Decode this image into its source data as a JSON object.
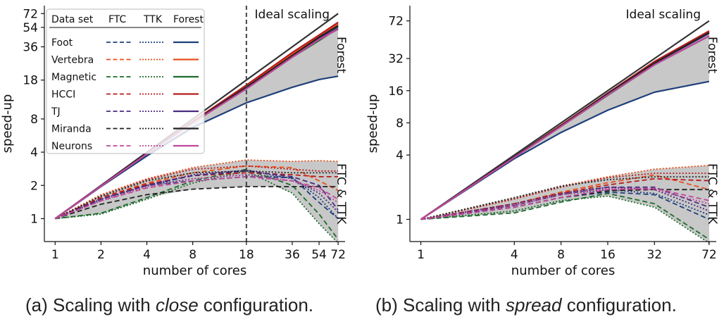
{
  "colors": {
    "Foot": "#1f3f7a",
    "Vertebra": "#e8501e",
    "Magnetic": "#1c6b2c",
    "HCCI": "#b71c1c",
    "TJ": "#4a2a80",
    "Miranda": "#222222",
    "Neurons": "#c0479c",
    "ideal": "#333333",
    "band": "#c8c8c8"
  },
  "legend": {
    "header": [
      "Data set",
      "FTC",
      "TTK",
      "Forest"
    ],
    "placement": "top-left"
  },
  "captions": {
    "a": {
      "prefix": "(a) Scaling with ",
      "em": "close",
      "suffix": " configuration."
    },
    "b": {
      "prefix": "(b) Scaling with ",
      "em": "spread",
      "suffix": " configuration."
    }
  },
  "chart_data": [
    {
      "type": "line",
      "id": "close",
      "xlabel": "number of cores",
      "ylabel": "speed-up",
      "xscale": "log",
      "yscale": "log",
      "x": [
        1,
        2,
        4,
        8,
        18,
        36,
        54,
        72
      ],
      "xticks": [
        1,
        2,
        4,
        8,
        18,
        36,
        54,
        72
      ],
      "yticks": [
        1,
        2,
        4,
        8,
        18,
        36,
        54,
        72
      ],
      "xlim": [
        0.85,
        80
      ],
      "ylim": [
        0.62,
        85
      ],
      "vline": {
        "x": 18,
        "style": "dashed"
      },
      "annotations": {
        "ideal": "Ideal scaling",
        "forest": "Forest",
        "ftc_ttk": "FTC & TTK"
      },
      "ideal": [
        1,
        2,
        4,
        8,
        18,
        36,
        54,
        72
      ],
      "series": [
        {
          "name": "Foot",
          "forest": [
            1,
            1.95,
            3.7,
            6.7,
            11.2,
            15.5,
            18.2,
            19.5
          ],
          "ftc": [
            1,
            1.5,
            2.0,
            2.2,
            2.4,
            2.35,
            1.4,
            1.0
          ],
          "ttk": [
            1,
            1.5,
            2.0,
            2.3,
            2.5,
            2.35,
            1.55,
            1.0
          ]
        },
        {
          "name": "Vertebra",
          "forest": [
            1,
            1.98,
            3.9,
            7.5,
            15.8,
            31,
            45,
            58
          ],
          "ftc": [
            1,
            1.55,
            2.1,
            2.6,
            3.0,
            2.9,
            2.2,
            1.8
          ],
          "ttk": [
            1,
            1.65,
            2.3,
            2.9,
            3.4,
            3.3,
            3.35,
            3.3
          ]
        },
        {
          "name": "Magnetic",
          "forest": [
            1,
            1.97,
            3.85,
            7.4,
            15,
            29,
            41,
            53
          ],
          "ftc": [
            1,
            1.12,
            1.55,
            2.2,
            2.8,
            2.0,
            1.1,
            0.65
          ],
          "ttk": [
            1,
            1.1,
            1.5,
            2.1,
            2.7,
            1.7,
            0.9,
            0.6
          ]
        },
        {
          "name": "HCCI",
          "forest": [
            1,
            1.98,
            3.9,
            7.6,
            16.2,
            32,
            46,
            60
          ],
          "ftc": [
            1,
            1.55,
            2.05,
            2.45,
            2.6,
            2.5,
            2.4,
            2.4
          ],
          "ttk": [
            1,
            1.6,
            2.25,
            2.8,
            3.0,
            2.8,
            2.7,
            2.7
          ]
        },
        {
          "name": "TJ",
          "forest": [
            1,
            1.98,
            3.9,
            7.5,
            15.5,
            30,
            43,
            55
          ],
          "ftc": [
            1,
            1.5,
            2.0,
            2.45,
            2.7,
            2.4,
            2.0,
            1.2
          ],
          "ttk": [
            1,
            1.5,
            2.0,
            2.5,
            2.75,
            2.3,
            1.7,
            1.15
          ]
        },
        {
          "name": "Miranda",
          "forest": [
            1,
            1.98,
            3.9,
            7.5,
            15.5,
            30,
            44,
            56
          ],
          "ftc": [
            1,
            1.35,
            1.65,
            1.85,
            1.95,
            1.95,
            1.95,
            1.95
          ],
          "ttk": [
            1,
            1.6,
            2.2,
            2.6,
            2.7,
            2.6,
            2.6,
            2.6
          ]
        },
        {
          "name": "Neurons",
          "forest": [
            1,
            1.97,
            3.85,
            7.4,
            15,
            29,
            42,
            52
          ],
          "ftc": [
            1,
            1.45,
            1.9,
            2.2,
            2.4,
            2.2,
            1.9,
            1.5
          ],
          "ttk": [
            1,
            1.45,
            1.95,
            2.3,
            2.5,
            2.2,
            1.8,
            1.4
          ]
        }
      ]
    },
    {
      "type": "line",
      "id": "spread",
      "xlabel": "number of cores",
      "ylabel": "speed-up",
      "xscale": "log",
      "yscale": "log",
      "x": [
        1,
        4,
        8,
        16,
        32,
        72
      ],
      "xticks": [
        1,
        4,
        8,
        16,
        32,
        72
      ],
      "yticks": [
        1,
        4,
        8,
        16,
        32,
        72
      ],
      "xlim": [
        0.85,
        80
      ],
      "ylim": [
        0.62,
        100
      ],
      "annotations": {
        "ideal": "Ideal scaling",
        "forest": "Forest",
        "ftc_ttk": "FTC & TTK"
      },
      "ideal": [
        1,
        4,
        8,
        16,
        32,
        72
      ],
      "series": [
        {
          "name": "Foot",
          "forest": [
            1,
            3.7,
            6.5,
            10.5,
            15.5,
            19.5
          ],
          "ftc": [
            1,
            1.3,
            1.6,
            1.8,
            1.7,
            1.0
          ],
          "ttk": [
            1,
            1.35,
            1.7,
            1.9,
            1.75,
            1.1
          ]
        },
        {
          "name": "Vertebra",
          "forest": [
            1,
            3.85,
            7.6,
            15,
            29,
            57
          ],
          "ftc": [
            1,
            1.4,
            1.8,
            2.2,
            2.6,
            1.9
          ],
          "ttk": [
            1,
            1.55,
            2.05,
            2.5,
            2.95,
            3.2
          ]
        },
        {
          "name": "Magnetic",
          "forest": [
            1,
            3.8,
            7.4,
            14.5,
            28,
            52
          ],
          "ftc": [
            1,
            1.15,
            1.45,
            1.75,
            1.4,
            0.65
          ],
          "ttk": [
            1,
            1.2,
            1.5,
            1.65,
            1.3,
            0.6
          ]
        },
        {
          "name": "HCCI",
          "forest": [
            1,
            3.85,
            7.6,
            15.2,
            30,
            58
          ],
          "ftc": [
            1,
            1.4,
            1.75,
            2.1,
            2.4,
            2.3
          ],
          "ttk": [
            1,
            1.55,
            2.0,
            2.45,
            2.7,
            2.7
          ]
        },
        {
          "name": "TJ",
          "forest": [
            1,
            3.85,
            7.5,
            15,
            29,
            55
          ],
          "ftc": [
            1,
            1.35,
            1.7,
            2.0,
            2.0,
            1.3
          ],
          "ttk": [
            1,
            1.4,
            1.75,
            2.0,
            1.9,
            1.2
          ]
        },
        {
          "name": "Miranda",
          "forest": [
            1,
            3.85,
            7.5,
            15,
            29,
            56
          ],
          "ftc": [
            1,
            1.3,
            1.6,
            1.85,
            1.9,
            1.9
          ],
          "ttk": [
            1,
            1.6,
            2.05,
            2.35,
            2.5,
            2.5
          ]
        },
        {
          "name": "Neurons",
          "forest": [
            1,
            3.8,
            7.4,
            14.6,
            28,
            52
          ],
          "ftc": [
            1,
            1.3,
            1.6,
            1.9,
            1.95,
            1.5
          ],
          "ttk": [
            1,
            1.35,
            1.7,
            1.95,
            1.9,
            1.4
          ]
        }
      ]
    }
  ]
}
